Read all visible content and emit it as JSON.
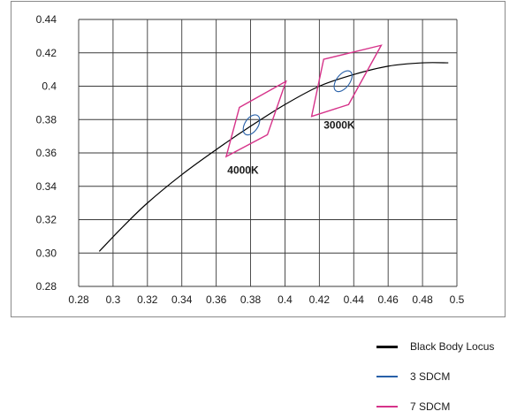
{
  "chart_data": {
    "type": "line",
    "title": "",
    "xlabel": "",
    "ylabel": "",
    "xlim": [
      0.28,
      0.5
    ],
    "ylim": [
      0.28,
      0.44
    ],
    "grid": true,
    "legend_position": "bottom-right, outside plot",
    "x_ticks": [
      "0.28",
      "0.3",
      "0.32",
      "0.34",
      "0.36",
      "0.38",
      "0.4",
      "0.42",
      "0.44",
      "0.46",
      "0.48",
      "0.5"
    ],
    "y_ticks": [
      "0.28",
      "0.30",
      "0.32",
      "0.34",
      "0.36",
      "0.38",
      "0.4",
      "0.42",
      "0.44"
    ],
    "series": [
      {
        "name": "Black Body Locus",
        "color": "#000000",
        "kind": "line",
        "x": [
          0.292,
          0.305,
          0.32,
          0.34,
          0.36,
          0.38,
          0.4,
          0.42,
          0.44,
          0.46,
          0.48,
          0.495
        ],
        "y": [
          0.301,
          0.315,
          0.33,
          0.347,
          0.362,
          0.376,
          0.389,
          0.4,
          0.407,
          0.412,
          0.414,
          0.414
        ]
      },
      {
        "name": "3 SDCM",
        "color": "#2860a8",
        "kind": "ellipse",
        "ellipses": [
          {
            "cx": 0.3805,
            "cy": 0.3768,
            "rx": 0.0065,
            "ry": 0.0072,
            "angle": -57
          },
          {
            "cx": 0.4338,
            "cy": 0.403,
            "rx": 0.007,
            "ry": 0.0072,
            "angle": -53
          }
        ]
      },
      {
        "name": "7 SDCM",
        "color": "#d6338a",
        "kind": "polygon",
        "polygons": [
          [
            [
              0.3735,
              0.3873
            ],
            [
              0.4006,
              0.4029
            ],
            [
              0.3898,
              0.3709
            ],
            [
              0.3658,
              0.3578
            ]
          ],
          [
            [
              0.4225,
              0.4161
            ],
            [
              0.456,
              0.4245
            ],
            [
              0.437,
              0.389
            ],
            [
              0.4155,
              0.3819
            ]
          ]
        ]
      }
    ],
    "annotations": [
      {
        "text": "4000K",
        "x": 0.3665,
        "y": 0.3475
      },
      {
        "text": "3000K",
        "x": 0.4225,
        "y": 0.3745
      }
    ]
  }
}
